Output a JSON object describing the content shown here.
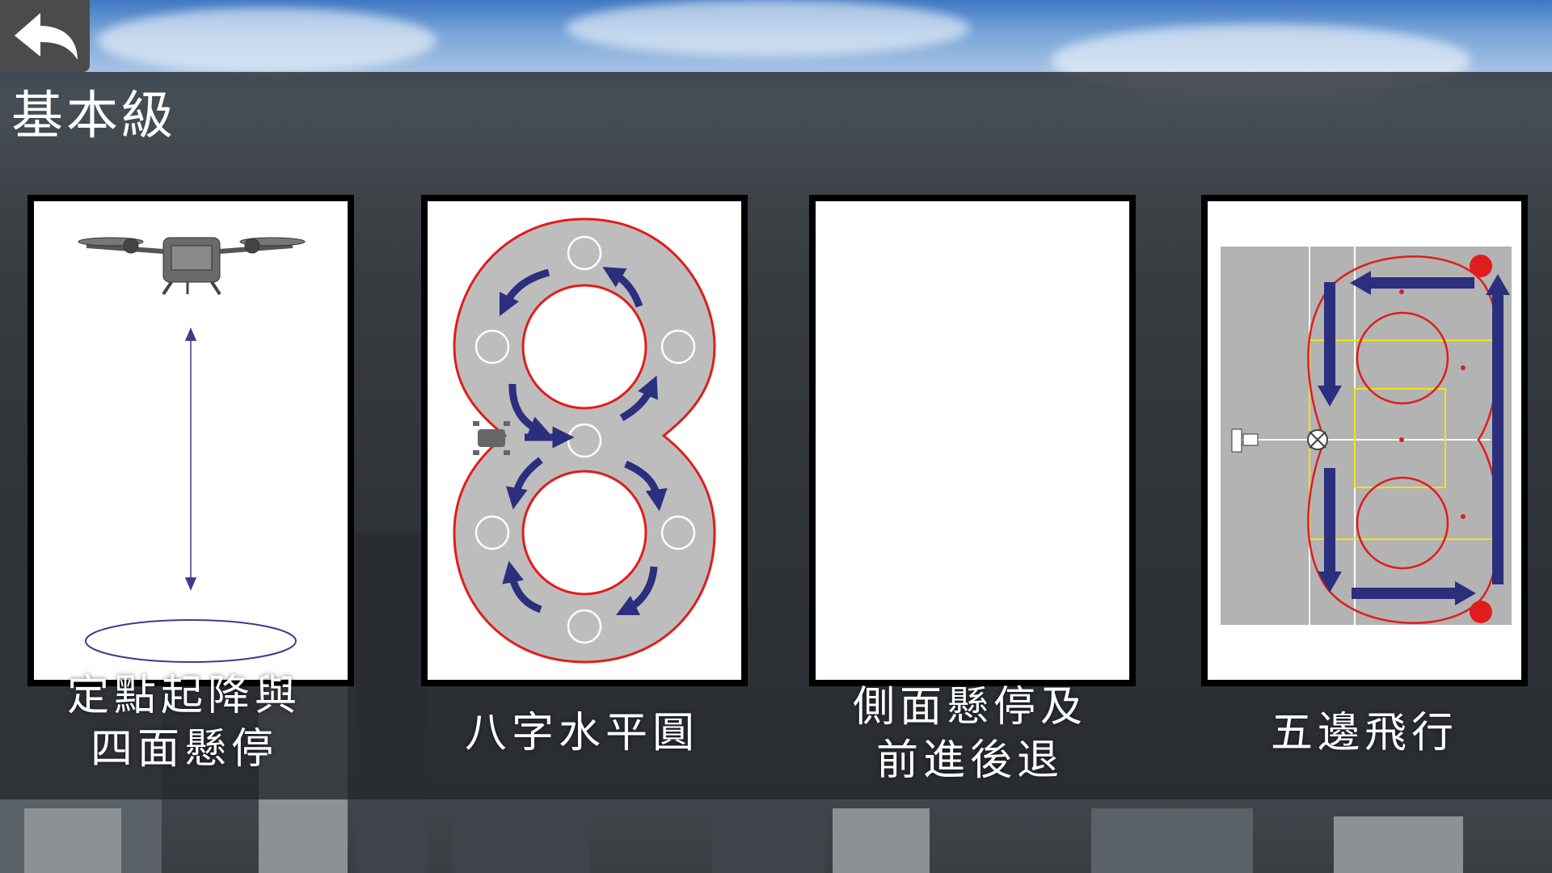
{
  "header": {
    "back_icon": "back-arrow-icon",
    "title": "基本級"
  },
  "levels": [
    {
      "id": "takeoff-landing",
      "caption_lines": [
        "定點起降與",
        "四面懸停"
      ]
    },
    {
      "id": "figure-eight",
      "caption_lines": [
        "八字水平圓"
      ]
    },
    {
      "id": "side-hover",
      "caption_lines": [
        "側面懸停及",
        "前進後退"
      ]
    },
    {
      "id": "pentagon",
      "caption_lines": [
        "五邊飛行"
      ]
    }
  ],
  "colors": {
    "track_gray": "#bdbdbd",
    "route_red": "#e11c1c",
    "arrow_navy": "#2b2f7e",
    "guide_yellow": "#f2e21a"
  }
}
